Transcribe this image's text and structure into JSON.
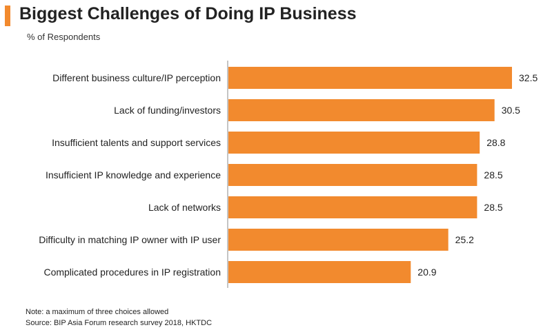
{
  "header": {
    "title": "Biggest Challenges of Doing IP Business",
    "subtitle": "% of Respondents"
  },
  "footer": {
    "note": "Note: a maximum  of three choices allowed",
    "source": "Source: BIP Asia Forum research survey 2018, HKTDC"
  },
  "colors": {
    "accent": "#f28a2e",
    "bar": "#f28a2e",
    "axis": "#888888"
  },
  "chart_data": {
    "type": "bar",
    "orientation": "horizontal",
    "title": "Biggest Challenges of Doing IP Business",
    "subtitle": "% of Respondents",
    "categories": [
      "Different business culture/IP perception",
      "Lack of funding/investors",
      "Insufficient talents and support services",
      "Insufficient IP knowledge and experience",
      "Lack of networks",
      "Difficulty in matching IP owner with IP user",
      "Complicated procedures in IP registration"
    ],
    "values": [
      32.5,
      30.5,
      28.8,
      28.5,
      28.5,
      25.2,
      20.9
    ],
    "data_labels": [
      "32.5",
      "30.5",
      "28.8",
      "28.5",
      "28.5",
      "25.2",
      "20.9"
    ],
    "xlim": [
      0,
      32.5
    ],
    "grid": false,
    "legend": "none"
  }
}
